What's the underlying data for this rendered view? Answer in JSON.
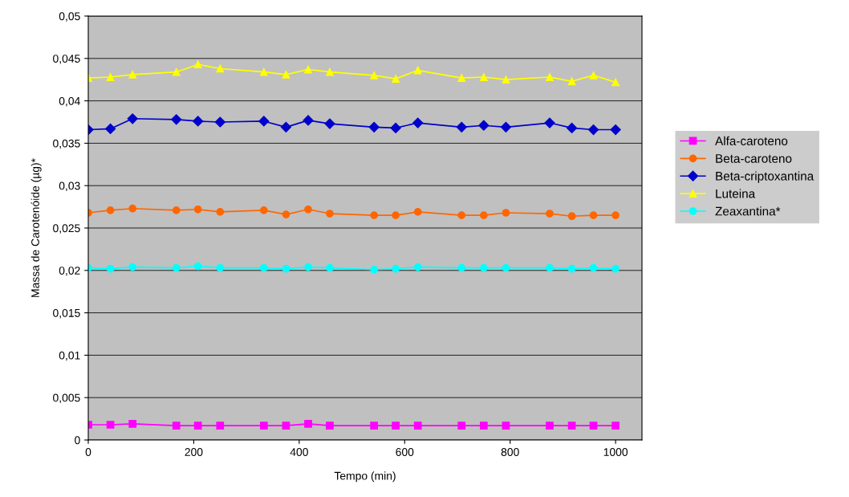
{
  "chart_data": {
    "type": "line",
    "xlabel": "Tempo (min)",
    "ylabel": "Massa de Carotenóide (µg)*",
    "x": [
      0,
      42,
      84,
      167,
      208,
      250,
      333,
      375,
      417,
      458,
      542,
      583,
      625,
      708,
      750,
      792,
      875,
      917,
      958,
      1000
    ],
    "series": [
      {
        "name": "Alfa-caroteno",
        "color": "#ff00ff",
        "marker": "square",
        "values": [
          0.0018,
          0.0018,
          0.0019,
          0.0017,
          0.0017,
          0.0017,
          0.0017,
          0.0017,
          0.0019,
          0.0017,
          0.0017,
          0.0017,
          0.0017,
          0.0017,
          0.0017,
          0.0017,
          0.0017,
          0.0017,
          0.0017,
          0.0017
        ]
      },
      {
        "name": "Beta-caroteno",
        "color": "#ff6600",
        "marker": "circle",
        "values": [
          0.0268,
          0.0271,
          0.0273,
          0.0271,
          0.0272,
          0.0269,
          0.0271,
          0.0266,
          0.0272,
          0.0267,
          0.0265,
          0.0265,
          0.0269,
          0.0265,
          0.0265,
          0.0268,
          0.0267,
          0.0264,
          0.0265,
          0.0265
        ]
      },
      {
        "name": "Beta-criptoxantina",
        "color": "#0000cc",
        "marker": "diamond",
        "values": [
          0.0366,
          0.0367,
          0.0379,
          0.0378,
          0.0376,
          0.0375,
          0.0376,
          0.0369,
          0.0377,
          0.0373,
          0.0369,
          0.0368,
          0.0374,
          0.0369,
          0.0371,
          0.0369,
          0.0374,
          0.0368,
          0.0366,
          0.0366
        ]
      },
      {
        "name": "Luteina",
        "color": "#ffff00",
        "marker": "triangle",
        "values": [
          0.0427,
          0.0428,
          0.0431,
          0.0434,
          0.0443,
          0.0438,
          0.0434,
          0.0431,
          0.0437,
          0.0434,
          0.043,
          0.0426,
          0.0436,
          0.0427,
          0.0428,
          0.0425,
          0.0428,
          0.0423,
          0.043,
          0.0422
        ]
      },
      {
        "name": "Zeaxantina*",
        "color": "#00ffff",
        "marker": "circle",
        "values": [
          0.0203,
          0.0202,
          0.0204,
          0.0203,
          0.0205,
          0.0203,
          0.0203,
          0.0202,
          0.0204,
          0.0203,
          0.0201,
          0.0202,
          0.0204,
          0.0203,
          0.0203,
          0.0203,
          0.0203,
          0.0202,
          0.0203,
          0.0202
        ]
      }
    ],
    "xlim": [
      0,
      1050
    ],
    "xticks": [
      0,
      200,
      400,
      600,
      800,
      1000
    ],
    "ylim": [
      0,
      0.05
    ],
    "yticks": [
      {
        "value": 0,
        "label": "0"
      },
      {
        "value": 0.005,
        "label": "0,005"
      },
      {
        "value": 0.01,
        "label": "0,01"
      },
      {
        "value": 0.015,
        "label": "0,015"
      },
      {
        "value": 0.02,
        "label": "0,02"
      },
      {
        "value": 0.025,
        "label": "0,025"
      },
      {
        "value": 0.03,
        "label": "0,03"
      },
      {
        "value": 0.035,
        "label": "0,035"
      },
      {
        "value": 0.04,
        "label": "0,04"
      },
      {
        "value": 0.045,
        "label": "0,045"
      },
      {
        "value": 0.05,
        "label": "0,05"
      }
    ],
    "grid": "y",
    "legend": "right"
  }
}
